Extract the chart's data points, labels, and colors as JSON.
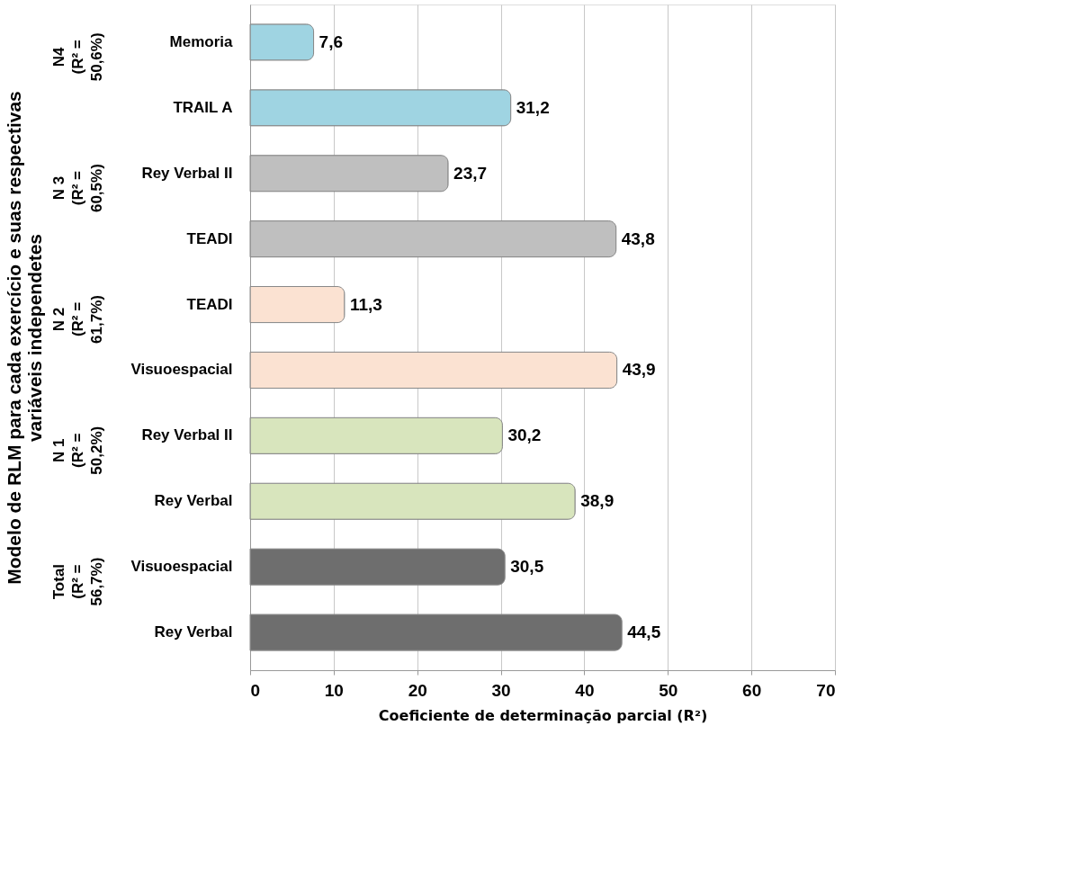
{
  "chart_data": {
    "type": "bar",
    "orientation": "horizontal",
    "ylabel": "Modelo de RLM para cada exercício e suas respectivas\nvariáveis independetes",
    "xlabel": "Coeficiente de determinação parcial (R²)",
    "categories": [
      "Memoria",
      "TRAIL  A",
      "Rey Verbal II",
      "TEADI",
      "TEADI",
      "Visuoespacial",
      "Rey Verbal II",
      "Rey Verbal",
      "Visuoespacial",
      "Rey Verbal"
    ],
    "values": [
      7.6,
      31.2,
      23.7,
      43.8,
      11.3,
      43.9,
      30.2,
      38.9,
      30.5,
      44.5
    ],
    "value_labels": [
      "7,6",
      "31,2",
      "23,7",
      "43,8",
      "11,3",
      "43,9",
      "30,2",
      "38,9",
      "30,5",
      "44,5"
    ],
    "colors": [
      "#9fd4e2",
      "#9fd4e2",
      "#bfbfbf",
      "#bfbfbf",
      "#fbe2d2",
      "#fbe2d2",
      "#d8e5bd",
      "#d8e5bd",
      "#6e6e6e",
      "#6e6e6e"
    ],
    "annotations": [
      "N4\n(R² =\n50,6%)",
      "N 3\n(R² =\n60,5%)",
      "N 2\n(R² =\n61,7%)",
      "N 1\n(R² =\n50,2%)",
      "Total\n(R² =\n56,7%)"
    ],
    "xlim": [
      0,
      70
    ],
    "xticks": [
      0,
      10,
      20,
      30,
      40,
      50,
      60,
      70
    ],
    "grid": "x"
  }
}
